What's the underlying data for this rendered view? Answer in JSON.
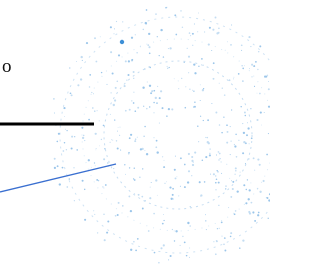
{
  "label": "o"
}
